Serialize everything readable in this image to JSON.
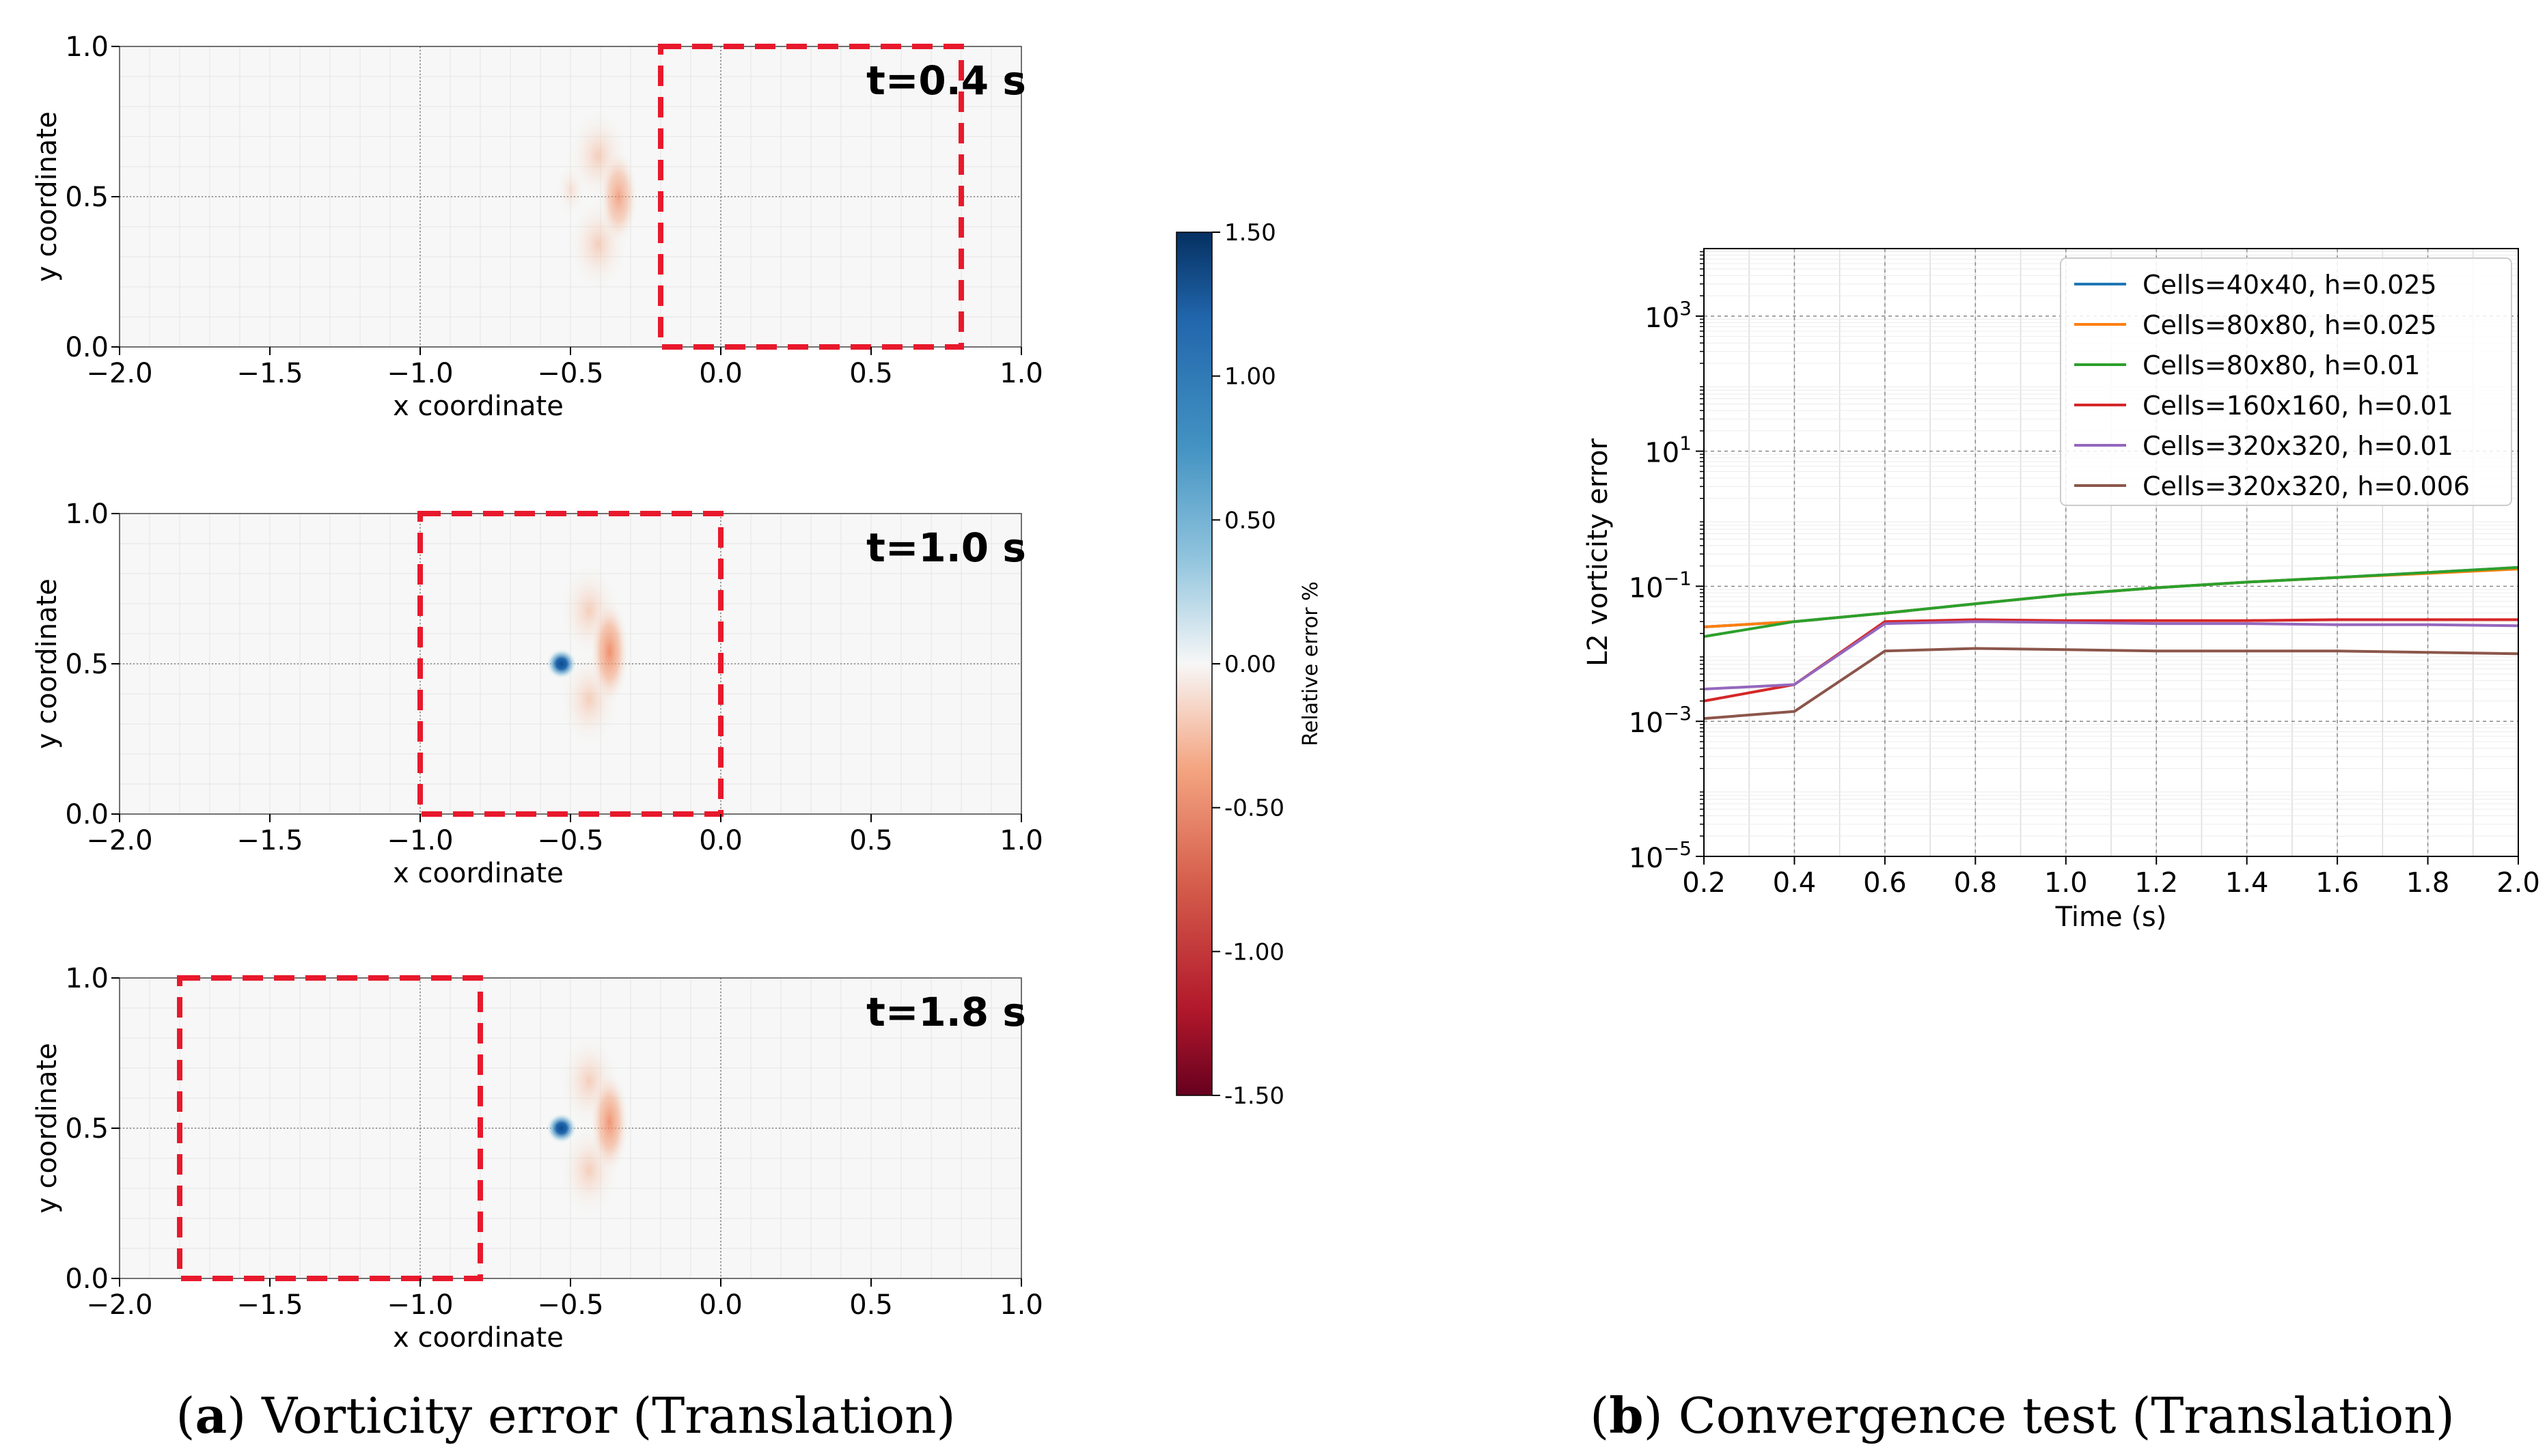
{
  "captions": {
    "a": {
      "letter": "a",
      "text": ") Vorticity error (Translation)"
    },
    "b": {
      "letter": "b",
      "text": ") Convergence test (Translation)"
    }
  },
  "chart_data": [
    {
      "type": "heatmap",
      "panels": [
        {
          "time_label": "t=0.4 s",
          "window_x": [
            -0.2,
            0.8
          ],
          "window_y": [
            0.0,
            1.0
          ],
          "blue_center": null,
          "red_center": [
            -0.34,
            0.5
          ],
          "red_strength": 0.25
        },
        {
          "time_label": "t=1.0 s",
          "window_x": [
            -1.0,
            0.0
          ],
          "window_y": [
            0.0,
            1.0
          ],
          "blue_center": [
            -0.53,
            0.5
          ],
          "red_center": [
            -0.37,
            0.54
          ],
          "red_strength": 0.45
        },
        {
          "time_label": "t=1.8 s",
          "window_x": [
            -1.8,
            -0.8
          ],
          "window_y": [
            0.0,
            1.0
          ],
          "blue_center": [
            -0.53,
            0.5
          ],
          "red_center": [
            -0.37,
            0.52
          ],
          "red_strength": 0.4
        }
      ],
      "xlabel": "x coordinate",
      "ylabel": "y coordinate",
      "xlim": [
        -2.0,
        1.0
      ],
      "ylim": [
        0.0,
        1.0
      ],
      "x_ticks": [
        "−2.0",
        "−1.5",
        "−1.0",
        "−0.5",
        "0.0",
        "0.5",
        "1.0"
      ],
      "y_ticks": [
        "0.0",
        "0.5",
        "1.0"
      ],
      "colorbar": {
        "label": "Relative error %",
        "range": [
          -1.5,
          1.5
        ],
        "ticks": [
          "1.50",
          "1.00",
          "0.50",
          "0.00",
          "-0.50",
          "-1.00",
          "-1.50"
        ],
        "colormap": "RdBu"
      }
    },
    {
      "type": "line",
      "xlabel": "Time (s)",
      "ylabel": "L2 vorticity error",
      "yscale": "log",
      "xlim": [
        0.2,
        2.0
      ],
      "ylim": [
        1e-05,
        10000
      ],
      "x_ticks": [
        "0.2",
        "0.4",
        "0.6",
        "0.8",
        "1.0",
        "1.2",
        "1.4",
        "1.6",
        "1.8",
        "2.0"
      ],
      "y_ticks": [
        {
          "base": "10",
          "exp": "−5",
          "value": 1e-05
        },
        {
          "base": "10",
          "exp": "−3",
          "value": 0.001
        },
        {
          "base": "10",
          "exp": "−1",
          "value": 0.1
        },
        {
          "base": "10",
          "exp": "1",
          "value": 10
        },
        {
          "base": "10",
          "exp": "3",
          "value": 1000
        }
      ],
      "grid": true,
      "legend_position": "top-right",
      "x": [
        0.2,
        0.4,
        0.6,
        0.8,
        1.0,
        1.2,
        1.4,
        1.6,
        1.8,
        2.0
      ],
      "series": [
        {
          "name": "Cells=40x40, h=0.025",
          "color": "#1f77b4",
          "values": [
            0.025,
            0.03,
            0.04,
            0.055,
            0.075,
            0.095,
            0.115,
            0.135,
            0.16,
            0.19
          ]
        },
        {
          "name": "Cells=80x80, h=0.025",
          "color": "#ff7f0e",
          "values": [
            0.025,
            0.03,
            0.04,
            0.055,
            0.075,
            0.095,
            0.115,
            0.135,
            0.155,
            0.18
          ]
        },
        {
          "name": "Cells=80x80, h=0.01",
          "color": "#2ca02c",
          "values": [
            0.018,
            0.03,
            0.04,
            0.055,
            0.075,
            0.095,
            0.115,
            0.135,
            0.16,
            0.19
          ]
        },
        {
          "name": "Cells=160x160, h=0.01",
          "color": "#d62728",
          "values": [
            0.002,
            0.0035,
            0.03,
            0.032,
            0.031,
            0.031,
            0.031,
            0.032,
            0.032,
            0.032
          ]
        },
        {
          "name": "Cells=320x320, h=0.01",
          "color": "#9467bd",
          "values": [
            0.003,
            0.0035,
            0.028,
            0.03,
            0.029,
            0.028,
            0.028,
            0.027,
            0.027,
            0.026
          ]
        },
        {
          "name": "Cells=320x320, h=0.006",
          "color": "#8c564b",
          "values": [
            0.0011,
            0.0014,
            0.011,
            0.012,
            0.0115,
            0.011,
            0.011,
            0.011,
            0.0105,
            0.01
          ]
        }
      ]
    }
  ]
}
